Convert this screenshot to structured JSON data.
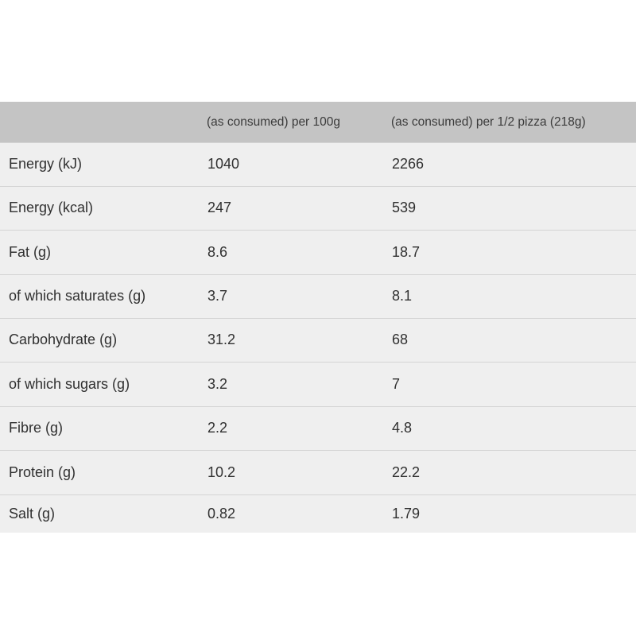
{
  "table": {
    "headers": [
      "",
      "(as consumed) per 100g",
      "(as consumed) per 1/2 pizza (218g)"
    ],
    "rows": [
      {
        "nutrient": "Energy (kJ)",
        "per_100g": "1040",
        "per_half_pizza": "2266"
      },
      {
        "nutrient": "Energy (kcal)",
        "per_100g": "247",
        "per_half_pizza": "539"
      },
      {
        "nutrient": "Fat (g)",
        "per_100g": "8.6",
        "per_half_pizza": "18.7"
      },
      {
        "nutrient": "of which saturates (g)",
        "per_100g": "3.7",
        "per_half_pizza": "8.1"
      },
      {
        "nutrient": "Carbohydrate (g)",
        "per_100g": "31.2",
        "per_half_pizza": "68"
      },
      {
        "nutrient": "of which sugars (g)",
        "per_100g": "3.2",
        "per_half_pizza": "7"
      },
      {
        "nutrient": "Fibre (g)",
        "per_100g": "2.2",
        "per_half_pizza": "4.8"
      },
      {
        "nutrient": "Protein (g)",
        "per_100g": "10.2",
        "per_half_pizza": "22.2"
      },
      {
        "nutrient": "Salt (g)",
        "per_100g": "0.82",
        "per_half_pizza": "1.79"
      }
    ]
  },
  "colors": {
    "header_background": "#c4c4c4",
    "row_background": "#efefef",
    "row_divider": "#d4d4d4",
    "text": "#303030"
  }
}
